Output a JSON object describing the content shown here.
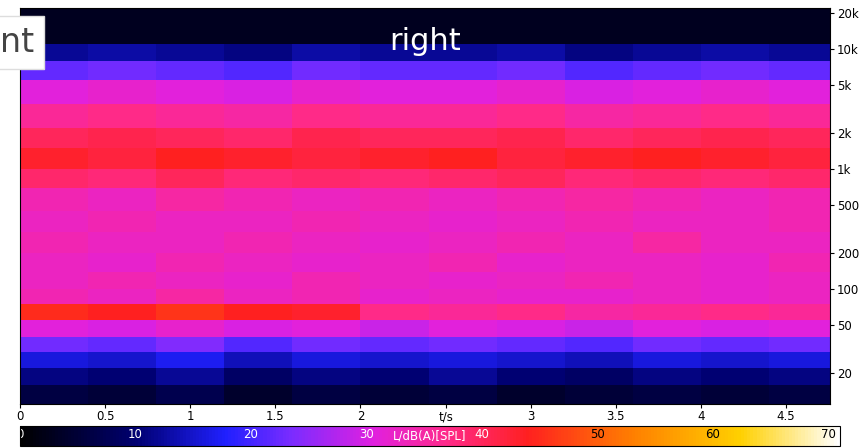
{
  "chart_data": {
    "type": "heatmap",
    "title": "right",
    "annotation": "nt",
    "log": "y",
    "xlim": [
      0,
      4.76
    ],
    "xticks": [
      0,
      0.5,
      1,
      1.5,
      2,
      {
        "value": 2.5,
        "label": "t/s"
      },
      3,
      3.5,
      4,
      4.5
    ],
    "ylim": [
      11,
      22000
    ],
    "yticks": [
      20,
      50,
      100,
      200,
      500,
      {
        "value": 1000,
        "label": "1k"
      },
      {
        "value": 2000,
        "label": "2k"
      },
      {
        "value": 5000,
        "label": "5k"
      },
      {
        "value": 10000,
        "label": "10k"
      },
      {
        "value": 20000,
        "label": "20k"
      }
    ],
    "x_edges": [
      0,
      0.4,
      0.8,
      1.2,
      1.6,
      2.0,
      2.4,
      2.8,
      3.2,
      3.6,
      4.0,
      4.4,
      4.8
    ],
    "y_edges": [
      11,
      16,
      22,
      30,
      40,
      55,
      75,
      100,
      140,
      200,
      300,
      450,
      700,
      1000,
      1500,
      2200,
      3500,
      5500,
      8000,
      11000,
      22000
    ],
    "cells": [
      [
        6,
        5,
        7,
        4,
        6,
        5,
        6,
        4,
        5,
        6,
        5,
        6
      ],
      [
        11,
        10,
        12,
        9,
        11,
        10,
        12,
        10,
        9,
        11,
        10,
        11
      ],
      [
        16,
        15,
        17,
        14,
        16,
        15,
        16,
        15,
        14,
        16,
        15,
        16
      ],
      [
        23,
        22,
        24,
        21,
        23,
        22,
        23,
        22,
        21,
        23,
        22,
        23
      ],
      [
        31,
        30,
        32,
        30,
        31,
        29,
        31,
        30,
        29,
        31,
        30,
        31
      ],
      [
        45,
        44,
        46,
        44,
        43,
        37,
        36,
        37,
        35,
        36,
        37,
        36
      ],
      [
        34,
        33,
        35,
        33,
        34,
        32,
        33,
        32,
        32,
        33,
        32,
        33
      ],
      [
        33,
        34,
        33,
        32,
        34,
        33,
        32,
        33,
        34,
        33,
        32,
        33
      ],
      [
        33,
        32,
        34,
        33,
        32,
        33,
        34,
        32,
        33,
        33,
        32,
        34
      ],
      [
        34,
        33,
        33,
        34,
        33,
        32,
        33,
        34,
        33,
        35,
        33,
        33
      ],
      [
        33,
        34,
        33,
        33,
        34,
        33,
        32,
        33,
        34,
        33,
        33,
        34
      ],
      [
        34,
        33,
        35,
        34,
        33,
        34,
        33,
        34,
        35,
        34,
        33,
        34
      ],
      [
        39,
        38,
        40,
        38,
        39,
        38,
        39,
        40,
        38,
        39,
        38,
        39
      ],
      [
        43,
        42,
        44,
        43,
        42,
        43,
        44,
        42,
        43,
        44,
        43,
        42
      ],
      [
        40,
        41,
        40,
        39,
        41,
        40,
        40,
        41,
        39,
        40,
        41,
        40
      ],
      [
        36,
        37,
        36,
        35,
        37,
        36,
        36,
        37,
        35,
        36,
        37,
        36
      ],
      [
        31,
        32,
        31,
        30,
        32,
        31,
        31,
        32,
        30,
        31,
        32,
        31
      ],
      [
        22,
        23,
        22,
        21,
        23,
        22,
        22,
        23,
        21,
        22,
        23,
        22
      ],
      [
        12,
        13,
        12,
        11,
        13,
        12,
        12,
        13,
        11,
        12,
        13,
        12
      ],
      [
        3,
        3,
        3,
        3,
        3,
        3,
        3,
        3,
        3,
        3,
        3,
        3
      ]
    ],
    "colorbar": {
      "range": [
        0,
        71
      ],
      "ticks": [
        0,
        10,
        20,
        30,
        40,
        50,
        60,
        70
      ],
      "label": "L/dB(A)[SPL]"
    }
  }
}
